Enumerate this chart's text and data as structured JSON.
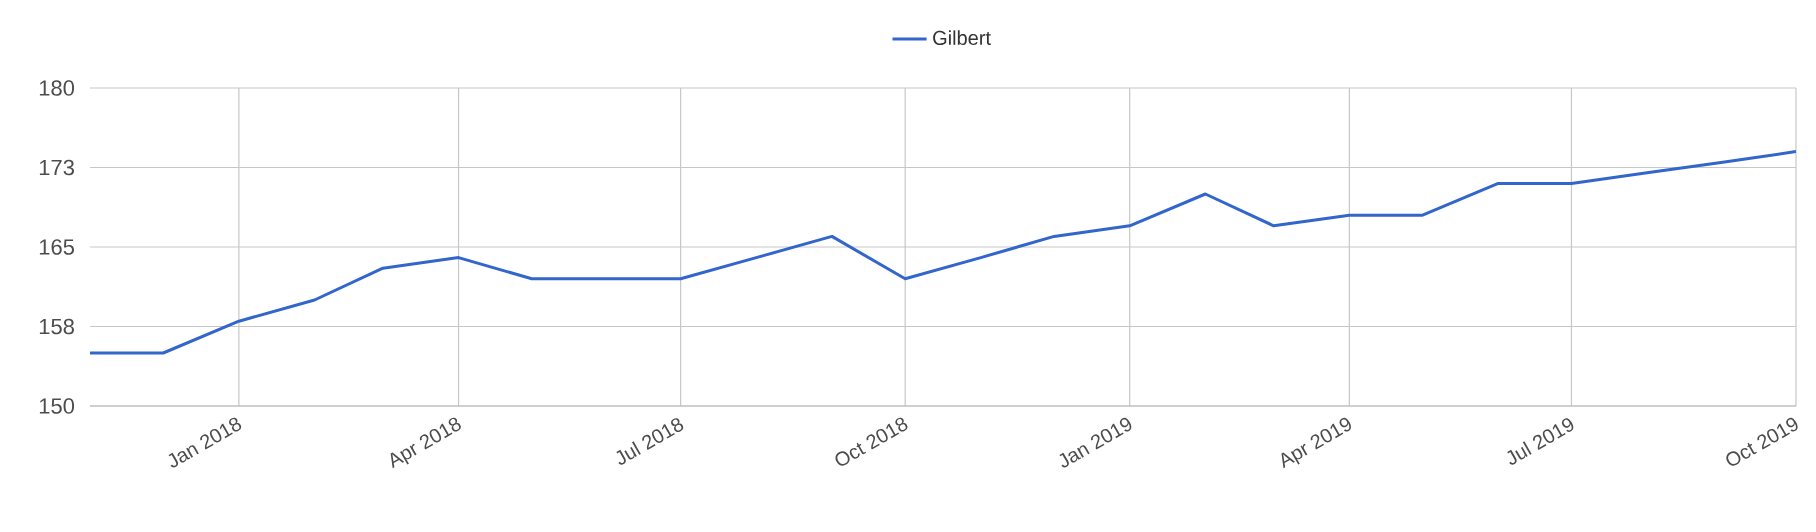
{
  "chart_data": {
    "type": "line",
    "x": [
      "2017-11",
      "2017-12",
      "2018-01",
      "2018-02",
      "2018-03",
      "2018-04",
      "2018-05",
      "2018-06",
      "2018-07",
      "2018-08",
      "2018-09",
      "2018-10",
      "2018-11",
      "2018-12",
      "2019-01",
      "2019-02",
      "2019-03",
      "2019-04",
      "2019-05",
      "2019-06",
      "2019-07",
      "2019-08",
      "2019-09",
      "2019-10"
    ],
    "series": [
      {
        "name": "Gilbert",
        "color": "#3366cc",
        "values": [
          155,
          155,
          158,
          160,
          163,
          164,
          162,
          162,
          162,
          164,
          166,
          162,
          164,
          166,
          167,
          170,
          167,
          168,
          168,
          171,
          171,
          172,
          173,
          174
        ]
      }
    ],
    "xlim": [
      "2017-11",
      "2019-10"
    ],
    "xticks": [
      {
        "value": "2018-01",
        "label": "Jan 2018"
      },
      {
        "value": "2018-04",
        "label": "Apr 2018"
      },
      {
        "value": "2018-07",
        "label": "Jul 2018"
      },
      {
        "value": "2018-10",
        "label": "Oct 2018"
      },
      {
        "value": "2019-01",
        "label": "Jan 2019"
      },
      {
        "value": "2019-04",
        "label": "Apr 2019"
      },
      {
        "value": "2019-07",
        "label": "Jul 2019"
      },
      {
        "value": "2019-10",
        "label": "Oct 2019"
      }
    ],
    "ylim": [
      150,
      180
    ],
    "yticks": [
      150,
      {
        "value": 157.5,
        "label": "158"
      },
      165,
      {
        "value": 172.5,
        "label": "173"
      },
      180
    ],
    "grid": true,
    "legend": "top",
    "marker": "none",
    "line_style": "solid"
  }
}
